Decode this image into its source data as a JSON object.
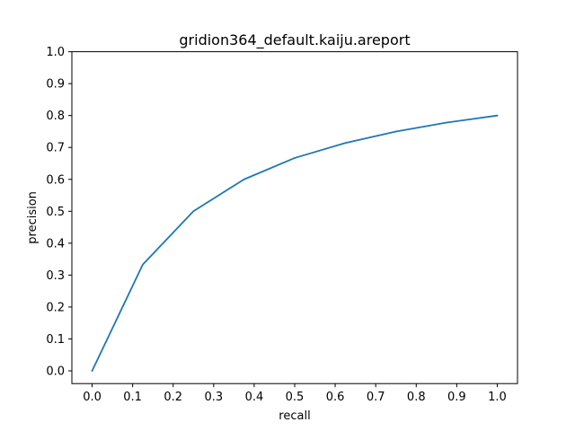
{
  "chart_data": {
    "type": "line",
    "title": "gridion364_default.kaiju.areport",
    "xlabel": "recall",
    "ylabel": "precision",
    "xlim": [
      -0.05,
      1.05
    ],
    "ylim": [
      -0.04,
      1.0
    ],
    "xticks": [
      0.0,
      0.1,
      0.2,
      0.3,
      0.4,
      0.5,
      0.6,
      0.7,
      0.8,
      0.9,
      1.0
    ],
    "xtick_labels": [
      "0.0",
      "0.1",
      "0.2",
      "0.3",
      "0.4",
      "0.5",
      "0.6",
      "0.7",
      "0.8",
      "0.9",
      "1.0"
    ],
    "yticks": [
      0.0,
      0.1,
      0.2,
      0.3,
      0.4,
      0.5,
      0.6,
      0.7,
      0.8,
      0.9,
      1.0
    ],
    "ytick_labels": [
      "0.0",
      "0.1",
      "0.2",
      "0.3",
      "0.4",
      "0.5",
      "0.6",
      "0.7",
      "0.8",
      "0.9",
      "1.0"
    ],
    "grid": false,
    "series": [
      {
        "color": "#1f77b4",
        "x": [
          0.0,
          0.125,
          0.25,
          0.375,
          0.5,
          0.625,
          0.75,
          0.875,
          1.0
        ],
        "y": [
          0.0,
          0.333,
          0.5,
          0.6,
          0.667,
          0.714,
          0.75,
          0.778,
          0.8
        ]
      }
    ]
  }
}
